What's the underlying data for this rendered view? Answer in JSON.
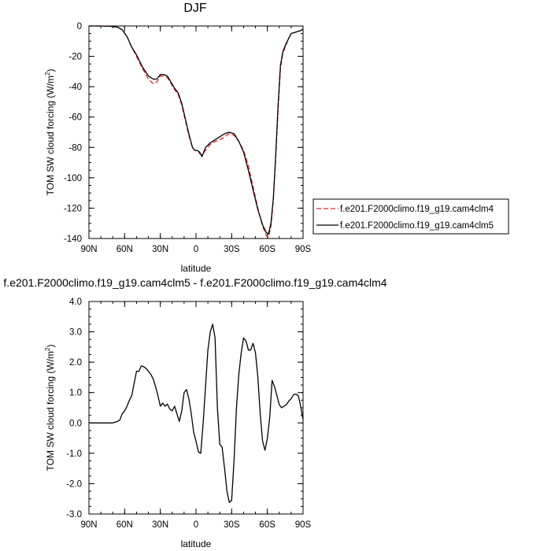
{
  "chart_data": [
    {
      "type": "line",
      "title": "DJF",
      "xlabel": "latitude",
      "ylabel": "TOM SW cloud forcing (W/m²)",
      "ylabel_main": "TOM SW cloud forcing (W/m",
      "ylabel_sup": "2",
      "ylabel_end": ")",
      "xlim": [
        90,
        -90
      ],
      "ylim": [
        -140,
        0
      ],
      "xticks": [
        90,
        60,
        30,
        0,
        -30,
        -60,
        -90
      ],
      "xtick_labels": [
        "90N",
        "60N",
        "30N",
        "0",
        "30S",
        "60S",
        "90S"
      ],
      "yticks": [
        0,
        -20,
        -40,
        -60,
        -80,
        -100,
        -120,
        -140
      ],
      "ytick_labels": [
        "0",
        "-20",
        "-40",
        "-60",
        "-80",
        "-100",
        "-120",
        "-140"
      ],
      "legend": "right",
      "x": [
        90,
        80,
        72,
        66,
        62,
        58,
        54,
        50,
        45,
        40,
        36,
        33,
        30,
        27,
        24,
        21,
        18,
        15,
        12,
        9,
        6,
        3,
        1,
        -1,
        -3,
        -5,
        -8,
        -12,
        -16,
        -20,
        -24,
        -28,
        -32,
        -36,
        -40,
        -44,
        -48,
        -52,
        -56,
        -59,
        -61,
        -63,
        -65,
        -67,
        -69,
        -71,
        -73,
        -75,
        -78,
        -80,
        -84,
        -88,
        -90
      ],
      "series": [
        {
          "name": "f.e201.F2000climo.f19_g19.cam4clm4",
          "color": "#e0262b",
          "dash": true,
          "values": [
            0,
            0,
            -0.2,
            -0.8,
            -2.5,
            -7,
            -14,
            -20,
            -28,
            -35,
            -38,
            -37,
            -33,
            -33,
            -34,
            -38,
            -42,
            -45,
            -52,
            -62,
            -72,
            -80,
            -82,
            -82,
            -84,
            -85,
            -82,
            -78,
            -76,
            -75,
            -73,
            -71,
            -72,
            -76,
            -82,
            -92,
            -106,
            -120,
            -132,
            -138,
            -139,
            -132,
            -115,
            -88,
            -55,
            -28,
            -18,
            -14,
            -8,
            -5,
            -4,
            -3,
            -2
          ]
        },
        {
          "name": "f.e201.F2000climo.f19_g19.cam4clm5",
          "color": "#000000",
          "dash": false,
          "values": [
            0,
            0,
            -0.2,
            -0.8,
            -2.5,
            -7,
            -14,
            -19,
            -27,
            -33,
            -35,
            -35,
            -32,
            -32,
            -33,
            -37,
            -41,
            -44,
            -51,
            -61,
            -71,
            -80,
            -82,
            -82,
            -83,
            -86,
            -80,
            -77,
            -75,
            -73,
            -71,
            -70,
            -71,
            -76,
            -83,
            -95,
            -108,
            -121,
            -131,
            -136,
            -137,
            -130,
            -114,
            -86,
            -52,
            -26,
            -17,
            -13,
            -8,
            -5,
            -4,
            -3,
            -2
          ]
        }
      ]
    },
    {
      "type": "line",
      "title": "f.e201.F2000climo.f19_g19.cam4clm5 - f.e201.F2000climo.f19_g19.cam4clm4",
      "xlabel": "latitude",
      "ylabel": "TOM SW cloud forcing (W/m²)",
      "ylabel_main": "TOM SW cloud forcing (W/m",
      "ylabel_sup": "2",
      "ylabel_end": ")",
      "xlim": [
        90,
        -90
      ],
      "ylim": [
        -3,
        4
      ],
      "xticks": [
        90,
        60,
        30,
        0,
        -30,
        -60,
        -90
      ],
      "xtick_labels": [
        "90N",
        "60N",
        "30N",
        "0",
        "30S",
        "60S",
        "90S"
      ],
      "yticks": [
        4,
        3,
        2,
        1,
        0,
        -1,
        -2,
        -3
      ],
      "ytick_labels": [
        "4.0",
        "3.0",
        "2.0",
        "1.0",
        "0.0",
        "-1.0",
        "-2.0",
        "-3.0"
      ],
      "series": [
        {
          "color": "#000000",
          "dash": false,
          "x": [
            90,
            70,
            66,
            64,
            62,
            60,
            58,
            56,
            54,
            52,
            50,
            48,
            46,
            44,
            42,
            40,
            38,
            36,
            34,
            32,
            30,
            28,
            26,
            24,
            22,
            20,
            18,
            16,
            14,
            12,
            10,
            8,
            6,
            4,
            2,
            0,
            -2,
            -4,
            -6,
            -8,
            -10,
            -12,
            -14,
            -16,
            -18,
            -20,
            -22,
            -24,
            -26,
            -28,
            -30,
            -32,
            -34,
            -36,
            -38,
            -40,
            -42,
            -44,
            -46,
            -48,
            -50,
            -52,
            -54,
            -56,
            -58,
            -60,
            -62,
            -64,
            -66,
            -68,
            -70,
            -72,
            -74,
            -76,
            -78,
            -80,
            -82,
            -84,
            -86,
            -88,
            -90
          ],
          "values": [
            0,
            0,
            0.05,
            0.1,
            0.3,
            0.4,
            0.55,
            0.75,
            0.9,
            1.3,
            1.7,
            1.7,
            1.88,
            1.85,
            1.8,
            1.7,
            1.6,
            1.45,
            1.2,
            0.9,
            0.55,
            0.65,
            0.55,
            0.62,
            0.45,
            0.4,
            0.55,
            0.3,
            0.05,
            0.4,
            1.0,
            1.1,
            0.8,
            0.3,
            -0.3,
            -0.6,
            -0.95,
            -1.0,
            0.0,
            1.2,
            2.4,
            3.0,
            3.25,
            2.8,
            0.5,
            -0.7,
            -0.8,
            -1.5,
            -2.25,
            -2.62,
            -2.55,
            -1.2,
            0.5,
            1.6,
            2.3,
            2.8,
            2.7,
            2.4,
            2.4,
            2.62,
            2.3,
            1.5,
            0.3,
            -0.6,
            -0.9,
            -0.5,
            0.2,
            1.4,
            1.2,
            0.9,
            0.6,
            0.5,
            0.55,
            0.6,
            0.72,
            0.8,
            0.93,
            0.95,
            0.9,
            0.55,
            0.1
          ]
        }
      ]
    }
  ]
}
